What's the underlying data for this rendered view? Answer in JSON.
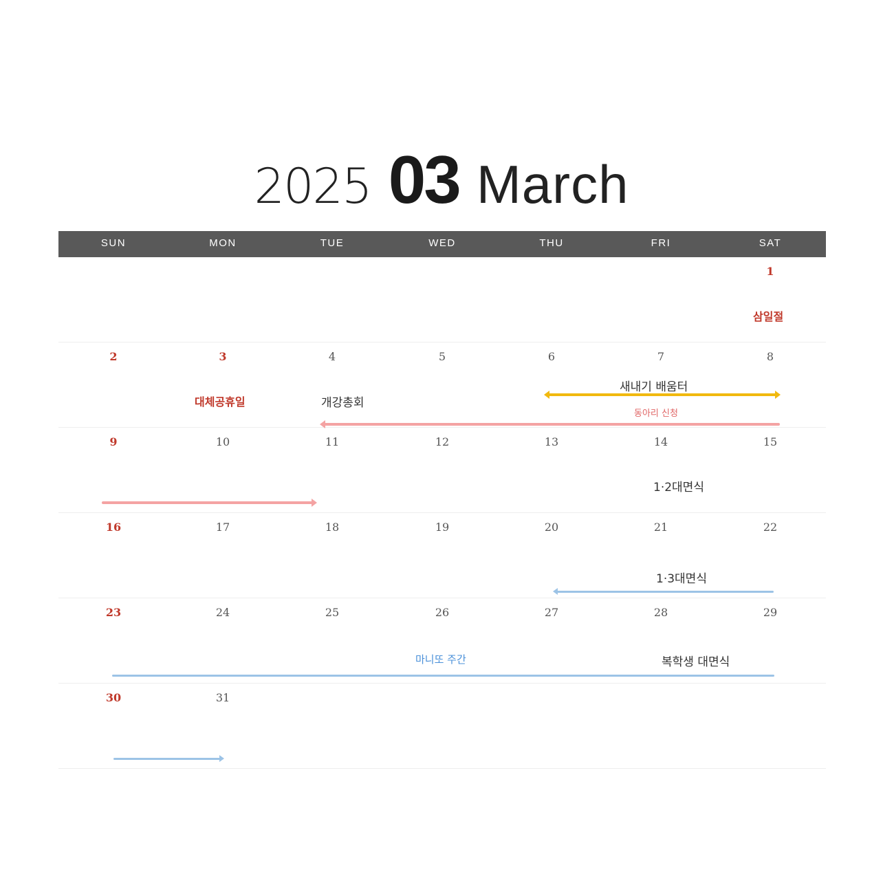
{
  "title": {
    "year": "2025",
    "month": "03",
    "month_name": "March"
  },
  "weekdays": [
    "SUN",
    "MON",
    "TUE",
    "WED",
    "THU",
    "FRI",
    "SAT"
  ],
  "days": [
    "1",
    "2",
    "3",
    "4",
    "5",
    "6",
    "7",
    "8",
    "9",
    "10",
    "11",
    "12",
    "13",
    "14",
    "15",
    "16",
    "17",
    "18",
    "19",
    "20",
    "21",
    "22",
    "23",
    "24",
    "25",
    "26",
    "27",
    "28",
    "29",
    "30",
    "31"
  ],
  "events": {
    "samiljeol": "삼일절",
    "substitute_holiday": "대체공휴일",
    "opening_assembly": "개강총회",
    "freshman_ot": "새내기 배움터",
    "club_signup": "동아리 신청",
    "meeting_1_2": "1·2대면식",
    "meeting_1_3": "1·3대면식",
    "manito_week": "마니또 주간",
    "returning_meeting": "복학생 대면식"
  },
  "colors": {
    "header_bg": "#595959",
    "holiday_red": "#c0392b",
    "yellow": "#f1b90f",
    "pink": "#f4a3a3",
    "blue": "#9cc3e6"
  }
}
